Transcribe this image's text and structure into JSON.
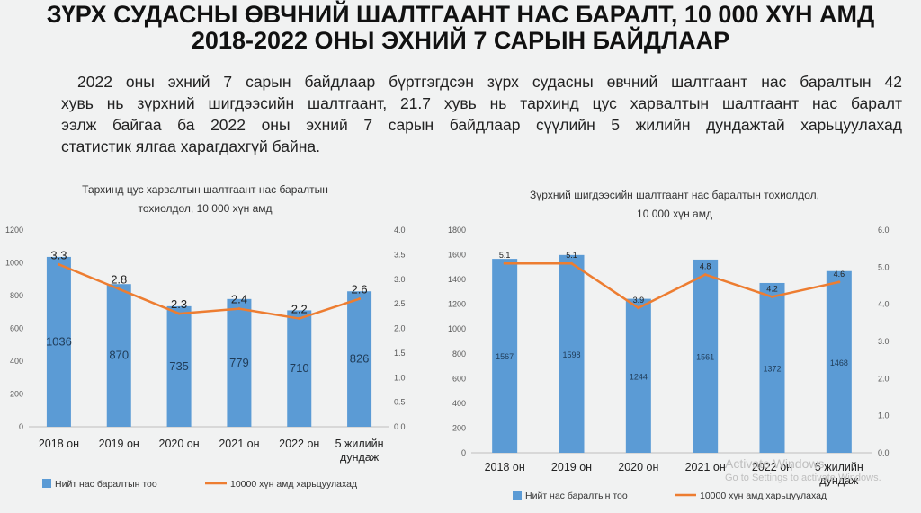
{
  "page": {
    "title_line1": "ЗҮРХ СУДАСНЫ ӨВЧНИЙ ШАЛТГААНТ НАС БАРАЛТ, 10 000 ХҮН АМД",
    "title_line2": "2018-2022 ОНЫ ЭХНИЙ 7 САРЫН БАЙДЛААР",
    "intro_lines": [
      "2022 оны эхний 7 сарын байдлаар бүртгэгдсэн зүрх судасны өвчний шалтгаант нас баралтын 42",
      "хувь нь зүрхний шигдээсийн шалтгаант, 21.7 хувь нь тархинд цус харвалтын шалтгаант нас баралт",
      "ээлж байгаа ба 2022 оны эхний 7 сарын байдлаар сүүлийн 5 жилийн дундажтай харьцуулахад",
      "статистик ялгаа харагдахгүй байна."
    ]
  },
  "watermark": {
    "line1": "Activate Windows",
    "line2": "Go to Settings to activate Windows."
  },
  "colors": {
    "bar": "#5b9bd5",
    "line": "#ed7d31",
    "axis": "#bfbfbf",
    "grid": "#d9d9d9"
  },
  "chart_data": [
    {
      "type": "bar",
      "title_line1": "Тархинд цус харвалтын шалтгаант нас баралтын",
      "title_line2": "тохиолдол, 10 000 хүн амд",
      "categories": [
        "2018 он",
        "2019 он",
        "2020 он",
        "2021 он",
        "2022 он",
        "5 жилийн дундаж"
      ],
      "category_label_lines": [
        [
          "2018 он"
        ],
        [
          "2019 он"
        ],
        [
          "2020 он"
        ],
        [
          "2021 он"
        ],
        [
          "2022 он"
        ],
        [
          "5 жилийн",
          "дундаж"
        ]
      ],
      "series": [
        {
          "name": "Нийт нас баралтын тоо",
          "type": "bar",
          "axis": "left",
          "values": [
            1036,
            870,
            735,
            779,
            710,
            826
          ]
        },
        {
          "name": "10000 хүн амд харьцуулахад",
          "type": "line",
          "axis": "right",
          "values": [
            3.3,
            2.8,
            2.3,
            2.4,
            2.2,
            2.6
          ]
        }
      ],
      "ylim": [
        0,
        1200
      ],
      "y_ticks": [
        "0",
        "200",
        "400",
        "600",
        "800",
        "1000",
        "1200"
      ],
      "y2lim": [
        0,
        4.0
      ],
      "y2_ticks": [
        "0.0",
        "0.5",
        "1.0",
        "1.5",
        "2.0",
        "2.5",
        "3.0",
        "3.5",
        "4.0"
      ],
      "grid": false,
      "legend": "bottom"
    },
    {
      "type": "bar",
      "title_line1": "Зүрхний шигдээсийн шалтгаант нас баралтын тохиолдол,",
      "title_line2": "10 000 хүн амд",
      "categories": [
        "2018 он",
        "2019 он",
        "2020 он",
        "2021 он",
        "2022 он",
        "5 жилийн дундаж"
      ],
      "category_label_lines": [
        [
          "2018 он"
        ],
        [
          "2019 он"
        ],
        [
          "2020 он"
        ],
        [
          "2021 он"
        ],
        [
          "2022 он"
        ],
        [
          "5 жилийн",
          "дундаж"
        ]
      ],
      "series": [
        {
          "name": "Нийт нас баралтын тоо",
          "type": "bar",
          "axis": "left",
          "values": [
            1567,
            1598,
            1244,
            1561,
            1372,
            1468
          ]
        },
        {
          "name": "10000 хүн амд харьцуулахад",
          "type": "line",
          "axis": "right",
          "values": [
            5.1,
            5.1,
            3.9,
            4.8,
            4.2,
            4.6
          ]
        }
      ],
      "ylim": [
        0,
        1800
      ],
      "y_ticks": [
        "0",
        "200",
        "400",
        "600",
        "800",
        "1000",
        "1200",
        "1400",
        "1600",
        "1800"
      ],
      "y2lim": [
        0,
        6.0
      ],
      "y2_ticks": [
        "0.0",
        "1.0",
        "2.0",
        "3.0",
        "4.0",
        "5.0",
        "6.0"
      ],
      "grid": false,
      "legend": "bottom"
    }
  ]
}
